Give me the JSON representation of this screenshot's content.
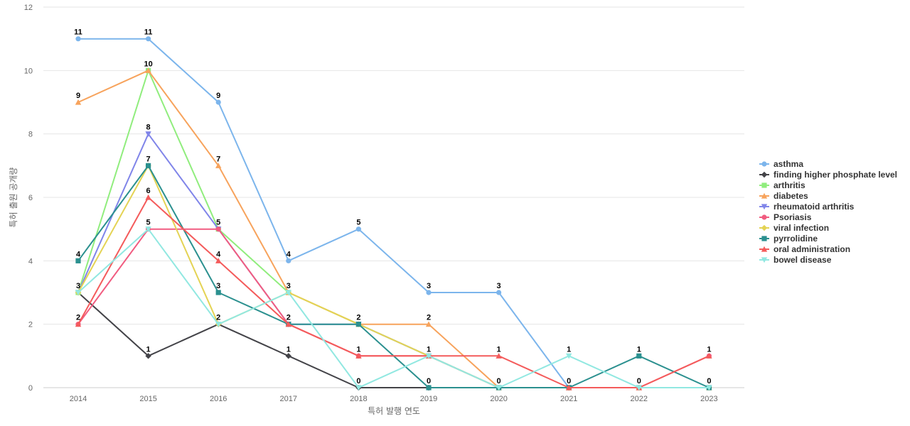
{
  "chart_data": {
    "type": "line",
    "title": "",
    "xlabel": "특허 발행 연도",
    "ylabel": "특허 출원 공개량",
    "x": [
      "2014",
      "2015",
      "2016",
      "2017",
      "2018",
      "2019",
      "2020",
      "2021",
      "2022",
      "2023"
    ],
    "ylim": [
      0,
      12
    ],
    "yticks": [
      0,
      2,
      4,
      6,
      8,
      10,
      12
    ],
    "grid": true,
    "legend_position": "right",
    "series": [
      {
        "name": "asthma",
        "color": "#7cb5ec",
        "marker": "circle",
        "values": [
          11,
          11,
          9,
          4,
          5,
          3,
          3,
          0,
          0,
          0
        ]
      },
      {
        "name": "finding higher phosphate level",
        "color": "#434348",
        "marker": "diamond",
        "values": [
          3,
          1,
          2,
          1,
          0,
          0,
          0,
          0,
          0,
          0
        ]
      },
      {
        "name": "arthritis",
        "color": "#90ed7d",
        "marker": "square",
        "values": [
          3,
          10,
          5,
          3,
          2,
          1,
          0,
          0,
          0,
          0
        ]
      },
      {
        "name": "diabetes",
        "color": "#f7a35c",
        "marker": "triangle",
        "values": [
          9,
          10,
          7,
          3,
          2,
          2,
          0,
          0,
          0,
          0
        ]
      },
      {
        "name": "rheumatoid arthritis",
        "color": "#8085e9",
        "marker": "triangle-down",
        "values": [
          3,
          8,
          5,
          2,
          2,
          1,
          0,
          0,
          0,
          0
        ]
      },
      {
        "name": "Psoriasis",
        "color": "#f15c80",
        "marker": "circle",
        "values": [
          2,
          5,
          5,
          2,
          1,
          1,
          0,
          0,
          0,
          1
        ]
      },
      {
        "name": "viral infection",
        "color": "#e4d354",
        "marker": "diamond",
        "values": [
          3,
          7,
          2,
          3,
          2,
          1,
          0,
          0,
          0,
          0
        ]
      },
      {
        "name": "pyrrolidine",
        "color": "#2b908f",
        "marker": "square",
        "values": [
          4,
          7,
          3,
          2,
          2,
          0,
          0,
          0,
          1,
          0
        ]
      },
      {
        "name": "oral administration",
        "color": "#f45b5b",
        "marker": "triangle",
        "values": [
          2,
          6,
          4,
          2,
          1,
          1,
          1,
          0,
          0,
          1
        ]
      },
      {
        "name": "bowel disease",
        "color": "#91e8e1",
        "marker": "triangle-down",
        "values": [
          3,
          5,
          2,
          3,
          0,
          1,
          0,
          1,
          0,
          0
        ]
      }
    ],
    "data_labels": [
      {
        "x": "2014",
        "text": "11",
        "series": "asthma"
      },
      {
        "x": "2014",
        "text": "9",
        "series": "diabetes"
      },
      {
        "x": "2014",
        "text": "4",
        "series": "pyrrolidine"
      },
      {
        "x": "2014",
        "text": "3",
        "series": "finding higher phosphate level"
      },
      {
        "x": "2014",
        "text": "2",
        "series": "Psoriasis"
      },
      {
        "x": "2015",
        "text": "11",
        "series": "asthma"
      },
      {
        "x": "2015",
        "text": "10",
        "series": "arthritis"
      },
      {
        "x": "2015",
        "text": "8",
        "series": "rheumatoid arthritis"
      },
      {
        "x": "2015",
        "text": "7",
        "series": "pyrrolidine"
      },
      {
        "x": "2015",
        "text": "6",
        "series": "oral administration"
      },
      {
        "x": "2015",
        "text": "5",
        "series": "Psoriasis"
      },
      {
        "x": "2015",
        "text": "1",
        "series": "finding higher phosphate level"
      },
      {
        "x": "2016",
        "text": "9",
        "series": "asthma"
      },
      {
        "x": "2016",
        "text": "7",
        "series": "diabetes"
      },
      {
        "x": "2016",
        "text": "5",
        "series": "Psoriasis"
      },
      {
        "x": "2016",
        "text": "4",
        "series": "oral administration"
      },
      {
        "x": "2016",
        "text": "3",
        "series": "pyrrolidine"
      },
      {
        "x": "2016",
        "text": "2",
        "series": "bowel disease"
      },
      {
        "x": "2017",
        "text": "4",
        "series": "asthma"
      },
      {
        "x": "2017",
        "text": "3",
        "series": "viral infection"
      },
      {
        "x": "2017",
        "text": "2",
        "series": "pyrrolidine"
      },
      {
        "x": "2017",
        "text": "1",
        "series": "finding higher phosphate level"
      },
      {
        "x": "2018",
        "text": "5",
        "series": "asthma"
      },
      {
        "x": "2018",
        "text": "2",
        "series": "pyrrolidine"
      },
      {
        "x": "2018",
        "text": "1",
        "series": "Psoriasis"
      },
      {
        "x": "2018",
        "text": "0",
        "series": "bowel disease"
      },
      {
        "x": "2019",
        "text": "3",
        "series": "asthma"
      },
      {
        "x": "2019",
        "text": "2",
        "series": "diabetes"
      },
      {
        "x": "2019",
        "text": "1",
        "series": "rheumatoid arthritis"
      },
      {
        "x": "2019",
        "text": "0",
        "series": "pyrrolidine"
      },
      {
        "x": "2020",
        "text": "3",
        "series": "asthma"
      },
      {
        "x": "2020",
        "text": "1",
        "series": "oral administration"
      },
      {
        "x": "2020",
        "text": "0",
        "series": "pyrrolidine"
      },
      {
        "x": "2021",
        "text": "1",
        "series": "bowel disease"
      },
      {
        "x": "2021",
        "text": "0",
        "series": "oral administration"
      },
      {
        "x": "2022",
        "text": "1",
        "series": "pyrrolidine"
      },
      {
        "x": "2022",
        "text": "0",
        "series": "Psoriasis"
      },
      {
        "x": "2023",
        "text": "1",
        "series": "oral administration"
      },
      {
        "x": "2023",
        "text": "0",
        "series": "pyrrolidine"
      }
    ]
  }
}
